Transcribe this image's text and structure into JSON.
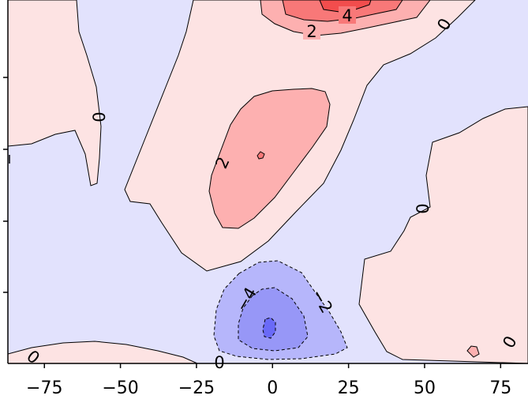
{
  "chart_data": {
    "type": "heatmap",
    "subtype": "filled-contour",
    "title": "",
    "xlabel": "",
    "ylabel": "",
    "xlim": [
      -87,
      84
    ],
    "x_ticks": [
      -75,
      -50,
      -25,
      0,
      25,
      50,
      75
    ],
    "x_tick_labels": [
      "−75",
      "−50",
      "−25",
      "0",
      "25",
      "50",
      "75"
    ],
    "contour_levels": [
      -6,
      -4,
      -2,
      0,
      2,
      4,
      6
    ],
    "negative_contours_dashed": true,
    "colormap": "bwr",
    "colors": {
      "level_-6_-4": "#6a6af7",
      "level_-4_-2": "#9797f7",
      "level_-2_0": "#b6b6fb",
      "level_0_2_negative_side": "#e2e2fd",
      "level_0_2": "#fde3e3",
      "level_2_4": "#fdb0b0",
      "level_4_6": "#f87878",
      "level_gt_6": "#f24d4d"
    },
    "contour_labels": [
      {
        "text": "2",
        "value": 2
      },
      {
        "text": "4",
        "value": 4
      },
      {
        "text": "0",
        "value": 0
      },
      {
        "text": "0",
        "value": 0
      },
      {
        "text": "2",
        "value": 2
      },
      {
        "text": "0",
        "value": 0
      },
      {
        "text": "−4",
        "value": -4
      },
      {
        "text": "−2",
        "value": -2
      },
      {
        "text": "0",
        "value": 0
      },
      {
        "text": "0",
        "value": 0
      },
      {
        "text": "0",
        "value": 0
      }
    ],
    "features": [
      {
        "kind": "positive",
        "max_level": 4,
        "x_center": -5
      },
      {
        "kind": "positive",
        "max_level": 6,
        "x_center": 20
      },
      {
        "kind": "negative",
        "min_level": -6,
        "x_center": -1
      }
    ]
  }
}
